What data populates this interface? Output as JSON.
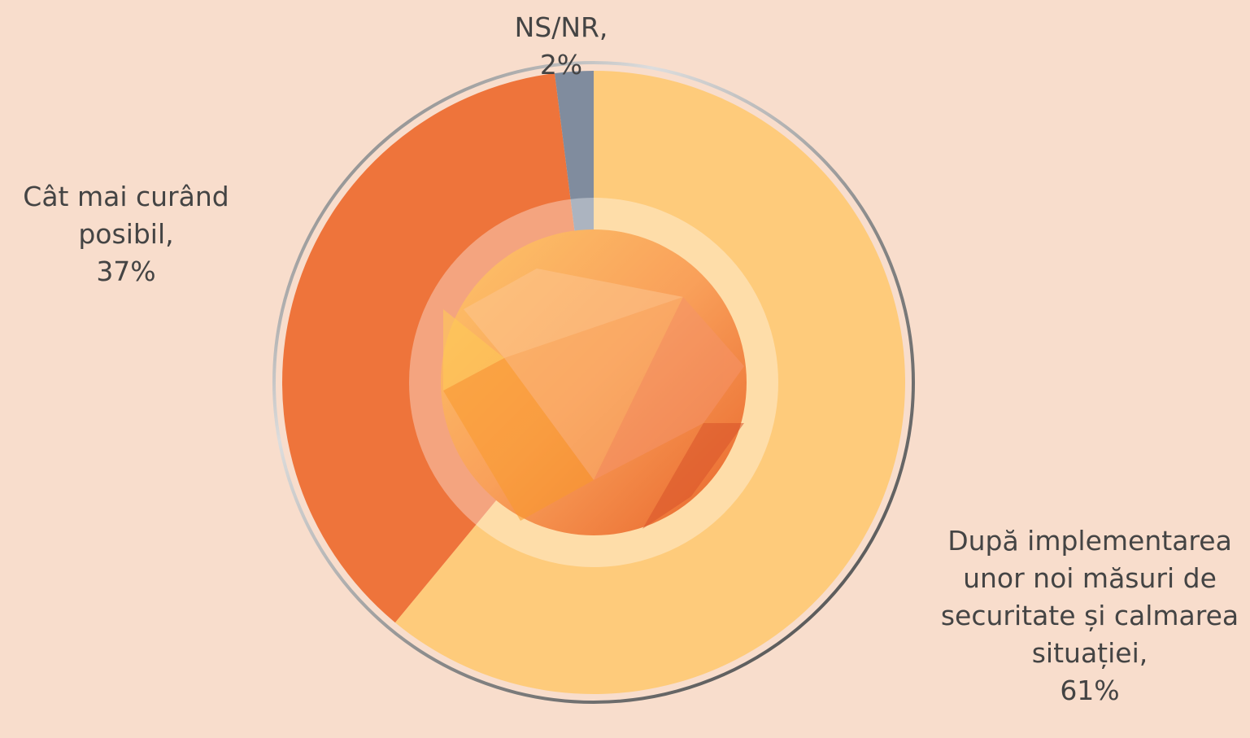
{
  "chart_data": {
    "type": "donut",
    "categories": [
      "După implementarea unor noi măsuri de securitate și calmarea situației,",
      "Cât mai curând posibil,",
      "NS/NR,"
    ],
    "values": [
      61,
      37,
      2
    ],
    "value_labels": [
      "61%",
      "37%",
      "2%"
    ],
    "colors": [
      "#fecb7b",
      "#ee743b",
      "#808c9e"
    ],
    "start_angle": 0,
    "direction": "clockwise"
  }
}
